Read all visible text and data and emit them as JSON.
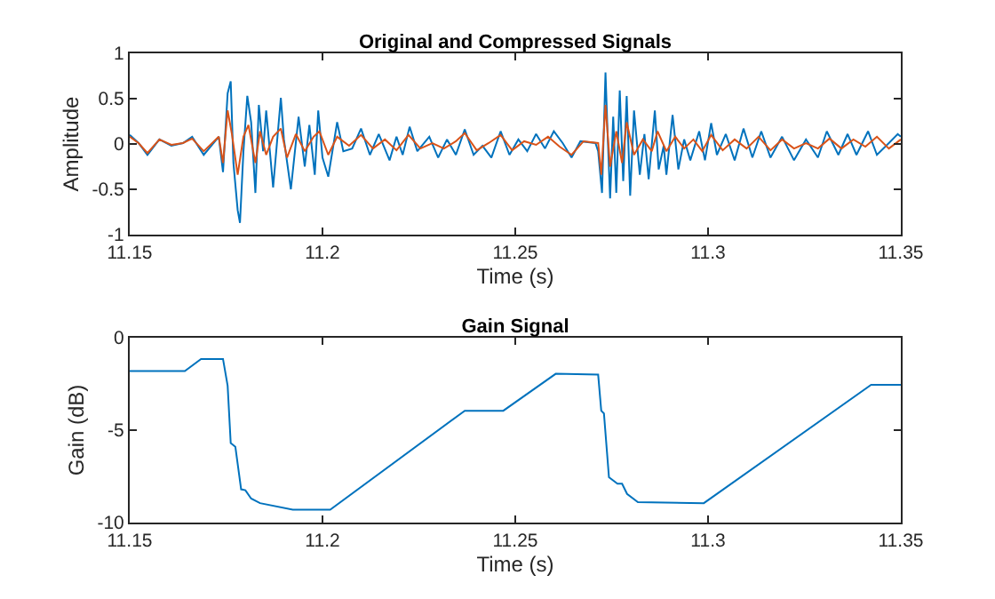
{
  "chart_data": [
    {
      "type": "line",
      "title": "Original and Compressed Signals",
      "xlabel": "Time (s)",
      "ylabel": "Amplitude",
      "xlim": [
        11.15,
        11.35
      ],
      "xticks": [
        11.15,
        11.2,
        11.25,
        11.3,
        11.35
      ],
      "ylim": [
        -1,
        1
      ],
      "yticks": [
        -1,
        -0.5,
        0,
        0.5,
        1
      ],
      "grid": false,
      "series": [
        {
          "color": "#0072bd",
          "x": [
            11.15,
            11.1523,
            11.1546,
            11.1577,
            11.1608,
            11.1638,
            11.1662,
            11.1692,
            11.1731,
            11.1742,
            11.1754,
            11.1762,
            11.1769,
            11.178,
            11.1786,
            11.1795,
            11.1805,
            11.1815,
            11.1826,
            11.1835,
            11.1846,
            11.1854,
            11.1872,
            11.1892,
            11.19,
            11.1918,
            11.1938,
            11.1954,
            11.1966,
            11.198,
            11.1989,
            11.2,
            11.2015,
            11.2038,
            11.2054,
            11.2077,
            11.21,
            11.2123,
            11.2146,
            11.2174,
            11.2192,
            11.2208,
            11.2226,
            11.2246,
            11.2277,
            11.23,
            11.2323,
            11.2346,
            11.2369,
            11.2392,
            11.2415,
            11.2438,
            11.2462,
            11.2485,
            11.2508,
            11.2531,
            11.2554,
            11.2577,
            11.26,
            11.2623,
            11.2646,
            11.2669,
            11.2708,
            11.2715,
            11.2725,
            11.2734,
            11.274,
            11.2746,
            11.2754,
            11.2762,
            11.2771,
            11.278,
            11.2789,
            11.2798,
            11.2808,
            11.2823,
            11.2835,
            11.2846,
            11.2862,
            11.2872,
            11.2885,
            11.2892,
            11.2908,
            11.2923,
            11.2938,
            11.2954,
            11.2977,
            11.2992,
            11.3008,
            11.3023,
            11.3046,
            11.3069,
            11.3092,
            11.3115,
            11.3138,
            11.3162,
            11.3192,
            11.3223,
            11.3254,
            11.3285,
            11.3308,
            11.3338,
            11.3362,
            11.3385,
            11.3415,
            11.3438,
            11.3469,
            11.3492,
            11.35
          ],
          "values": [
            0.1,
            0.01,
            -0.12,
            0.05,
            -0.02,
            0.01,
            0.08,
            -0.12,
            0.08,
            -0.31,
            0.56,
            0.69,
            -0.21,
            -0.73,
            -0.87,
            -0.08,
            0.53,
            0.24,
            -0.54,
            0.43,
            -0.08,
            0.37,
            -0.48,
            0.51,
            0.05,
            -0.5,
            0.3,
            -0.25,
            0.21,
            -0.34,
            0.37,
            -0.15,
            -0.36,
            0.24,
            -0.08,
            -0.05,
            0.17,
            -0.12,
            0.11,
            -0.18,
            0.08,
            -0.12,
            0.19,
            -0.08,
            0.08,
            -0.15,
            0.05,
            -0.12,
            0.16,
            -0.12,
            -0.02,
            -0.15,
            0.14,
            -0.12,
            0.05,
            -0.08,
            0.11,
            -0.05,
            0.14,
            0.01,
            -0.15,
            0.03,
            0.01,
            -0.08,
            -0.54,
            0.79,
            0.05,
            -0.6,
            0.3,
            -0.54,
            0.59,
            -0.41,
            0.53,
            -0.57,
            0.37,
            -0.34,
            0.11,
            -0.39,
            0.37,
            -0.28,
            -0.02,
            -0.34,
            0.32,
            -0.28,
            0.05,
            -0.18,
            0.14,
            -0.18,
            0.23,
            -0.12,
            0.11,
            -0.18,
            0.17,
            -0.15,
            0.14,
            -0.15,
            0.08,
            -0.18,
            0.05,
            -0.15,
            0.14,
            -0.12,
            0.11,
            -0.12,
            0.14,
            -0.12,
            0.01,
            0.11,
            0.08
          ]
        },
        {
          "color": "#d95319",
          "x": [
            11.15,
            11.1523,
            11.1546,
            11.1577,
            11.1608,
            11.1638,
            11.1662,
            11.1692,
            11.1731,
            11.1742,
            11.1754,
            11.1765,
            11.178,
            11.1795,
            11.1808,
            11.1826,
            11.1838,
            11.1854,
            11.1872,
            11.1892,
            11.1908,
            11.1931,
            11.1954,
            11.1977,
            11.1992,
            11.2015,
            11.2038,
            11.2069,
            11.21,
            11.2131,
            11.2162,
            11.2192,
            11.2223,
            11.2254,
            11.2285,
            11.2315,
            11.2346,
            11.2369,
            11.24,
            11.2431,
            11.2462,
            11.2492,
            11.2523,
            11.2554,
            11.2585,
            11.2615,
            11.2646,
            11.2677,
            11.2715,
            11.2723,
            11.2734,
            11.2746,
            11.2762,
            11.2777,
            11.2789,
            11.2808,
            11.2831,
            11.2854,
            11.2869,
            11.2892,
            11.2915,
            11.2938,
            11.2962,
            11.2985,
            11.3008,
            11.3038,
            11.3069,
            11.31,
            11.3131,
            11.3162,
            11.3192,
            11.3223,
            11.3254,
            11.3285,
            11.3315,
            11.3346,
            11.3377,
            11.3408,
            11.3438,
            11.3469,
            11.35
          ],
          "values": [
            0.08,
            0.01,
            -0.1,
            0.05,
            -0.01,
            0.01,
            0.06,
            -0.08,
            0.08,
            -0.21,
            0.37,
            0.11,
            -0.34,
            0.08,
            0.21,
            -0.21,
            0.14,
            -0.12,
            0.08,
            0.17,
            -0.15,
            0.11,
            -0.08,
            0.08,
            0.14,
            -0.12,
            0.08,
            -0.02,
            0.1,
            -0.05,
            0.05,
            -0.07,
            0.1,
            -0.05,
            0.01,
            -0.05,
            0.03,
            0.12,
            -0.07,
            0.01,
            0.1,
            -0.07,
            0.03,
            -0.01,
            0.08,
            -0.03,
            -0.12,
            0.03,
            0.01,
            -0.34,
            0.43,
            -0.25,
            0.14,
            -0.21,
            0.24,
            -0.12,
            0.05,
            -0.08,
            0.14,
            -0.08,
            0.08,
            -0.05,
            0.05,
            -0.08,
            0.1,
            -0.07,
            0.05,
            -0.05,
            0.08,
            -0.07,
            0.05,
            -0.05,
            0.01,
            -0.05,
            0.06,
            -0.05,
            0.05,
            -0.03,
            0.08,
            -0.05,
            0.05
          ]
        }
      ]
    },
    {
      "type": "line",
      "title": "Gain Signal",
      "xlabel": "Time (s)",
      "ylabel": "Gain (dB)",
      "xlim": [
        11.15,
        11.35
      ],
      "xticks": [
        11.15,
        11.2,
        11.25,
        11.3,
        11.35
      ],
      "ylim": [
        -10,
        0
      ],
      "yticks": [
        -10,
        -5,
        0
      ],
      "grid": false,
      "series": [
        {
          "color": "#0072bd",
          "x": [
            11.15,
            11.1643,
            11.1685,
            11.1742,
            11.1754,
            11.1762,
            11.1774,
            11.1789,
            11.18,
            11.1815,
            11.1838,
            11.1923,
            11.202,
            11.2369,
            11.2469,
            11.2605,
            11.2715,
            11.2723,
            11.273,
            11.2743,
            11.2765,
            11.2777,
            11.279,
            11.2818,
            11.2989,
            11.3423,
            11.35
          ],
          "values": [
            -1.8,
            -1.8,
            -1.15,
            -1.15,
            -2.6,
            -5.7,
            -5.9,
            -8.2,
            -8.25,
            -8.7,
            -8.95,
            -9.3,
            -9.3,
            -3.95,
            -3.95,
            -1.95,
            -2,
            -3.95,
            -4.1,
            -7.55,
            -7.9,
            -7.9,
            -8.45,
            -8.9,
            -8.95,
            -2.55,
            -2.55
          ]
        }
      ]
    }
  ]
}
